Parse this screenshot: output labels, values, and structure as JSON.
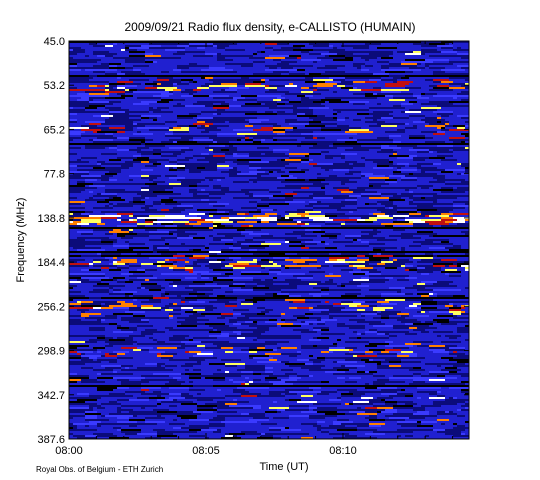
{
  "chart_data": {
    "type": "heatmap",
    "title": "2009/09/21  Radio flux density, e-CALLISTO (HUMAIN)",
    "xlabel": "Time (UT)",
    "ylabel": "Frequency (MHz)",
    "x_ticks": [
      {
        "label": "08:00",
        "minutes": 0
      },
      {
        "label": "08:05",
        "minutes": 5
      },
      {
        "label": "08:10",
        "minutes": 10
      }
    ],
    "x_range_minutes": [
      0,
      14.6
    ],
    "y_ticks": [
      "45.0",
      "53.2",
      "65.2",
      "77.8",
      "138.8",
      "184.4",
      "256.2",
      "298.9",
      "342.7",
      "387.6"
    ],
    "y_range_mhz": [
      45.0,
      387.6
    ],
    "y_inverted": true,
    "colormap": [
      "#000000",
      "#0b0b7a",
      "#2020d0",
      "#3a3aff",
      "#c01010",
      "#ff8000",
      "#ffff60",
      "#ffffff"
    ],
    "bright_bands": [
      {
        "label": "53.2",
        "intensity": 0.6
      },
      {
        "label": "65.2",
        "intensity": 0.35
      },
      {
        "label": "138.8",
        "intensity": 0.95
      },
      {
        "label": "184.4",
        "intensity": 0.55
      },
      {
        "label": "256.2",
        "intensity": 0.6
      },
      {
        "label": "298.9",
        "intensity": 0.35
      }
    ]
  },
  "footer": {
    "credit": "Royal Obs. of Belgium - ETH Zurich"
  }
}
